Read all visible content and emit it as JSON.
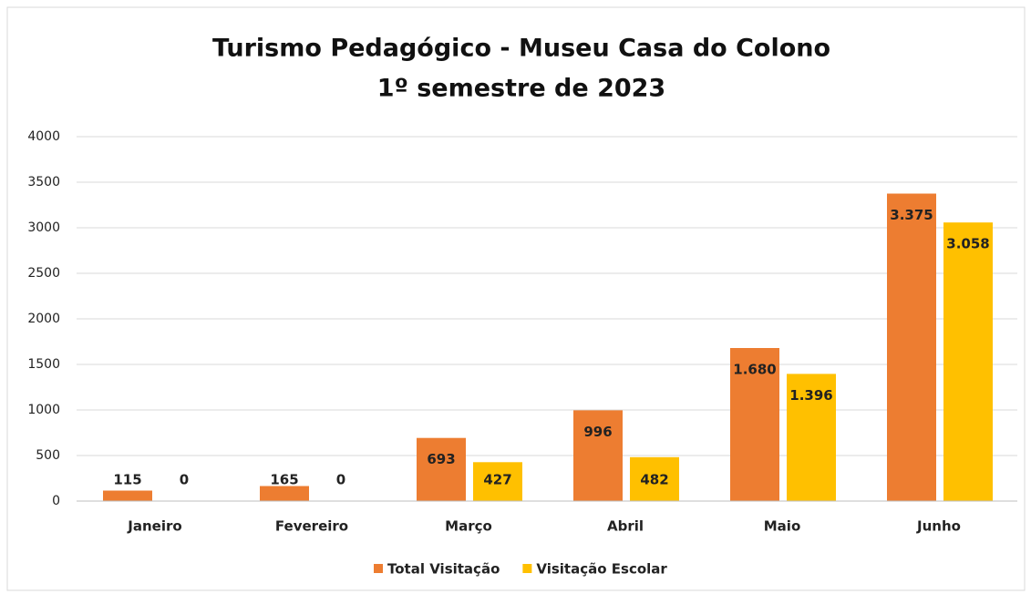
{
  "chart_data": {
    "type": "bar",
    "title": "Turismo Pedagógico - Museu Casa do Colono",
    "subtitle": "1º semestre de 2023",
    "categories": [
      "Janeiro",
      "Fevereiro",
      "Março",
      "Abril",
      "Maio",
      "Junho"
    ],
    "series": [
      {
        "name": "Total Visitação",
        "color": "#ed7d31",
        "values": [
          115,
          165,
          693,
          996,
          1680,
          3375
        ],
        "value_labels": [
          "115",
          "165",
          "693",
          "996",
          "1.680",
          "3.375"
        ]
      },
      {
        "name": "Visitação Escolar",
        "color": "#ffc000",
        "values": [
          0,
          0,
          427,
          482,
          1396,
          3058
        ],
        "value_labels": [
          "0",
          "0",
          "427",
          "482",
          "1.396",
          "3.058"
        ]
      }
    ],
    "ylim": [
      0,
      4000
    ],
    "yticks": [
      0,
      500,
      1000,
      1500,
      2000,
      2500,
      3000,
      3500,
      4000
    ],
    "grid": true,
    "legend": "bottom"
  }
}
